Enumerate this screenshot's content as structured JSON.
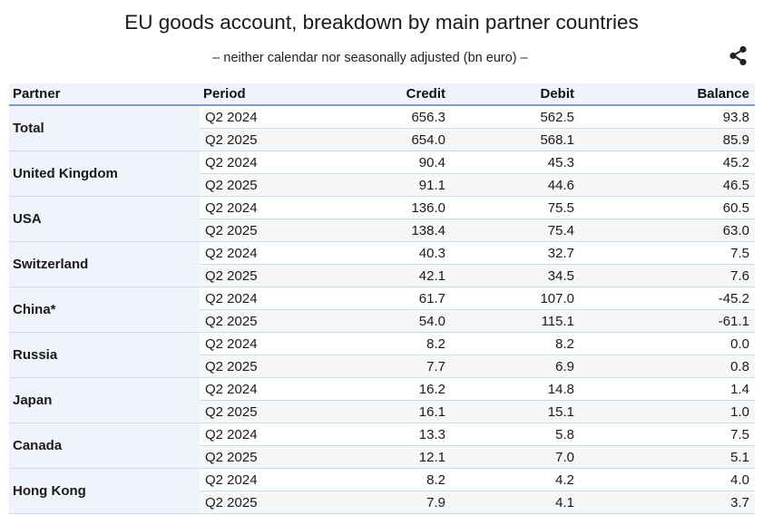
{
  "title": "EU goods account, breakdown by main partner countries",
  "subtitle": "– neither calendar nor seasonally adjusted (bn euro) –",
  "share_icon": "share-icon",
  "chart_data": {
    "type": "table",
    "title": "EU goods account, breakdown by main partner countries",
    "subtitle": "– neither calendar nor seasonally adjusted (bn euro) –",
    "columns": [
      "Partner",
      "Period",
      "Credit",
      "Debit",
      "Balance"
    ],
    "groups": [
      {
        "partner": "Total",
        "rows": [
          {
            "period": "Q2 2024",
            "credit": "656.3",
            "debit": "562.5",
            "balance": "93.8"
          },
          {
            "period": "Q2 2025",
            "credit": "654.0",
            "debit": "568.1",
            "balance": "85.9"
          }
        ]
      },
      {
        "partner": "United Kingdom",
        "rows": [
          {
            "period": "Q2 2024",
            "credit": "90.4",
            "debit": "45.3",
            "balance": "45.2"
          },
          {
            "period": "Q2 2025",
            "credit": "91.1",
            "debit": "44.6",
            "balance": "46.5"
          }
        ]
      },
      {
        "partner": "USA",
        "rows": [
          {
            "period": "Q2 2024",
            "credit": "136.0",
            "debit": "75.5",
            "balance": "60.5"
          },
          {
            "period": "Q2 2025",
            "credit": "138.4",
            "debit": "75.4",
            "balance": "63.0"
          }
        ]
      },
      {
        "partner": "Switzerland",
        "rows": [
          {
            "period": "Q2 2024",
            "credit": "40.3",
            "debit": "32.7",
            "balance": "7.5"
          },
          {
            "period": "Q2 2025",
            "credit": "42.1",
            "debit": "34.5",
            "balance": "7.6"
          }
        ]
      },
      {
        "partner": "China*",
        "rows": [
          {
            "period": "Q2 2024",
            "credit": "61.7",
            "debit": "107.0",
            "balance": "-45.2"
          },
          {
            "period": "Q2 2025",
            "credit": "54.0",
            "debit": "115.1",
            "balance": "-61.1"
          }
        ]
      },
      {
        "partner": "Russia",
        "rows": [
          {
            "period": "Q2 2024",
            "credit": "8.2",
            "debit": "8.2",
            "balance": "0.0"
          },
          {
            "period": "Q2 2025",
            "credit": "7.7",
            "debit": "6.9",
            "balance": "0.8"
          }
        ]
      },
      {
        "partner": "Japan",
        "rows": [
          {
            "period": "Q2 2024",
            "credit": "16.2",
            "debit": "14.8",
            "balance": "1.4"
          },
          {
            "period": "Q2 2025",
            "credit": "16.1",
            "debit": "15.1",
            "balance": "1.0"
          }
        ]
      },
      {
        "partner": "Canada",
        "rows": [
          {
            "period": "Q2 2024",
            "credit": "13.3",
            "debit": "5.8",
            "balance": "7.5"
          },
          {
            "period": "Q2 2025",
            "credit": "12.1",
            "debit": "7.0",
            "balance": "5.1"
          }
        ]
      },
      {
        "partner": "Hong Kong",
        "rows": [
          {
            "period": "Q2 2024",
            "credit": "8.2",
            "debit": "4.2",
            "balance": "4.0"
          },
          {
            "period": "Q2 2025",
            "credit": "7.9",
            "debit": "4.1",
            "balance": "3.7"
          }
        ]
      }
    ]
  }
}
